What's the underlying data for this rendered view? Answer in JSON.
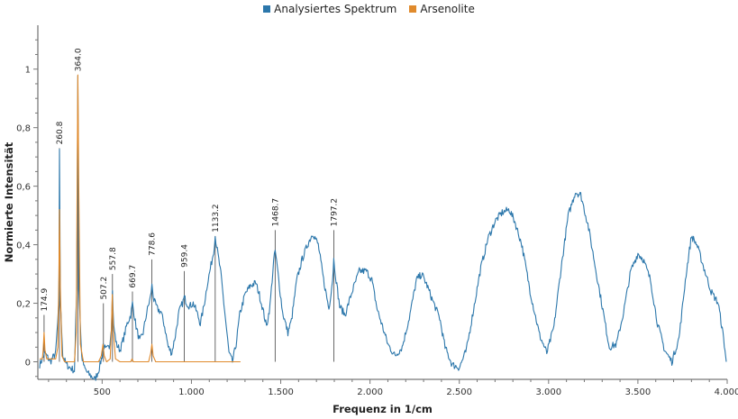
{
  "chart_data": {
    "type": "line",
    "title": "",
    "xlabel": "Frequenz in 1/cm",
    "ylabel": "Normierte Intensität",
    "xlim": [
      140,
      4000
    ],
    "ylim": [
      -0.06,
      1.15
    ],
    "x_ticks": [
      500,
      1000,
      1500,
      2000,
      2500,
      3000,
      3500,
      4000
    ],
    "x_tick_labels": [
      "500",
      "1.000",
      "1.500",
      "2.000",
      "2.500",
      "3.000",
      "3.500",
      "4.000"
    ],
    "y_ticks": [
      0,
      0.2,
      0.4,
      0.6,
      0.8,
      1
    ],
    "y_tick_labels": [
      "0",
      "0,2",
      "0,4",
      "0,6",
      "0,8",
      "1"
    ],
    "grid": false,
    "legend_position": "top-center",
    "series": [
      {
        "name": "Analysiertes Spektrum",
        "color": "#2c77ab",
        "points": [
          [
            150,
            -0.01
          ],
          [
            180,
            0.03
          ],
          [
            210,
            0.0
          ],
          [
            240,
            0.03
          ],
          [
            258,
            0.2
          ],
          [
            261,
            0.73
          ],
          [
            266,
            0.2
          ],
          [
            280,
            0.02
          ],
          [
            300,
            -0.01
          ],
          [
            320,
            -0.02
          ],
          [
            345,
            -0.03
          ],
          [
            358,
            0.25
          ],
          [
            364,
            0.98
          ],
          [
            370,
            0.25
          ],
          [
            385,
            0.02
          ],
          [
            400,
            -0.02
          ],
          [
            420,
            -0.04
          ],
          [
            440,
            -0.05
          ],
          [
            460,
            -0.06
          ],
          [
            480,
            -0.03
          ],
          [
            500,
            0.02
          ],
          [
            507,
            0.06
          ],
          [
            520,
            0.04
          ],
          [
            540,
            0.05
          ],
          [
            552,
            0.12
          ],
          [
            558,
            0.24
          ],
          [
            565,
            0.12
          ],
          [
            580,
            0.06
          ],
          [
            600,
            0.04
          ],
          [
            620,
            0.08
          ],
          [
            640,
            0.13
          ],
          [
            660,
            0.16
          ],
          [
            670,
            0.2
          ],
          [
            690,
            0.12
          ],
          [
            710,
            0.07
          ],
          [
            730,
            0.1
          ],
          [
            750,
            0.17
          ],
          [
            770,
            0.22
          ],
          [
            779,
            0.26
          ],
          [
            790,
            0.21
          ],
          [
            810,
            0.18
          ],
          [
            830,
            0.17
          ],
          [
            850,
            0.12
          ],
          [
            870,
            0.05
          ],
          [
            890,
            0.03
          ],
          [
            910,
            0.09
          ],
          [
            930,
            0.17
          ],
          [
            950,
            0.2
          ],
          [
            960,
            0.22
          ],
          [
            975,
            0.2
          ],
          [
            990,
            0.19
          ],
          [
            1010,
            0.2
          ],
          [
            1030,
            0.17
          ],
          [
            1050,
            0.13
          ],
          [
            1070,
            0.19
          ],
          [
            1090,
            0.27
          ],
          [
            1110,
            0.33
          ],
          [
            1125,
            0.38
          ],
          [
            1133,
            0.43
          ],
          [
            1145,
            0.38
          ],
          [
            1165,
            0.3
          ],
          [
            1190,
            0.15
          ],
          [
            1210,
            0.03
          ],
          [
            1230,
            0.0
          ],
          [
            1250,
            0.06
          ],
          [
            1270,
            0.16
          ],
          [
            1300,
            0.23
          ],
          [
            1330,
            0.26
          ],
          [
            1360,
            0.27
          ],
          [
            1380,
            0.23
          ],
          [
            1400,
            0.18
          ],
          [
            1420,
            0.12
          ],
          [
            1440,
            0.19
          ],
          [
            1460,
            0.34
          ],
          [
            1469,
            0.38
          ],
          [
            1485,
            0.3
          ],
          [
            1510,
            0.17
          ],
          [
            1540,
            0.1
          ],
          [
            1560,
            0.14
          ],
          [
            1590,
            0.28
          ],
          [
            1620,
            0.35
          ],
          [
            1650,
            0.4
          ],
          [
            1680,
            0.44
          ],
          [
            1710,
            0.4
          ],
          [
            1740,
            0.28
          ],
          [
            1770,
            0.18
          ],
          [
            1790,
            0.28
          ],
          [
            1797,
            0.35
          ],
          [
            1810,
            0.28
          ],
          [
            1830,
            0.19
          ],
          [
            1860,
            0.16
          ],
          [
            1900,
            0.24
          ],
          [
            1940,
            0.31
          ],
          [
            1980,
            0.31
          ],
          [
            2010,
            0.28
          ],
          [
            2040,
            0.18
          ],
          [
            2070,
            0.12
          ],
          [
            2100,
            0.06
          ],
          [
            2140,
            0.02
          ],
          [
            2180,
            0.05
          ],
          [
            2220,
            0.15
          ],
          [
            2260,
            0.28
          ],
          [
            2290,
            0.3
          ],
          [
            2320,
            0.26
          ],
          [
            2350,
            0.21
          ],
          [
            2390,
            0.15
          ],
          [
            2420,
            0.05
          ],
          [
            2460,
            -0.01
          ],
          [
            2500,
            -0.02
          ],
          [
            2540,
            0.04
          ],
          [
            2580,
            0.18
          ],
          [
            2620,
            0.32
          ],
          [
            2660,
            0.42
          ],
          [
            2700,
            0.48
          ],
          [
            2740,
            0.51
          ],
          [
            2780,
            0.52
          ],
          [
            2810,
            0.48
          ],
          [
            2850,
            0.4
          ],
          [
            2900,
            0.23
          ],
          [
            2950,
            0.09
          ],
          [
            2990,
            0.03
          ],
          [
            3030,
            0.12
          ],
          [
            3070,
            0.32
          ],
          [
            3110,
            0.5
          ],
          [
            3150,
            0.58
          ],
          [
            3180,
            0.57
          ],
          [
            3220,
            0.47
          ],
          [
            3260,
            0.33
          ],
          [
            3300,
            0.19
          ],
          [
            3340,
            0.05
          ],
          [
            3380,
            0.06
          ],
          [
            3420,
            0.17
          ],
          [
            3460,
            0.31
          ],
          [
            3500,
            0.37
          ],
          [
            3530,
            0.35
          ],
          [
            3570,
            0.28
          ],
          [
            3610,
            0.13
          ],
          [
            3650,
            0.04
          ],
          [
            3690,
            0.0
          ],
          [
            3730,
            0.08
          ],
          [
            3770,
            0.3
          ],
          [
            3800,
            0.43
          ],
          [
            3830,
            0.4
          ],
          [
            3870,
            0.32
          ],
          [
            3910,
            0.24
          ],
          [
            3950,
            0.2
          ],
          [
            3980,
            0.08
          ],
          [
            3995,
            0.0
          ]
        ]
      },
      {
        "name": "Arsenolite",
        "color": "#e08a2c",
        "points": [
          [
            150,
            0.01
          ],
          [
            165,
            0.01
          ],
          [
            170,
            0.04
          ],
          [
            175,
            0.1
          ],
          [
            180,
            0.04
          ],
          [
            190,
            0.01
          ],
          [
            240,
            0.01
          ],
          [
            252,
            0.05
          ],
          [
            258,
            0.3
          ],
          [
            261,
            0.52
          ],
          [
            266,
            0.25
          ],
          [
            275,
            0.02
          ],
          [
            290,
            0.0
          ],
          [
            345,
            0.0
          ],
          [
            355,
            0.1
          ],
          [
            361,
            0.7
          ],
          [
            364,
            0.98
          ],
          [
            369,
            0.6
          ],
          [
            378,
            0.06
          ],
          [
            395,
            0.0
          ],
          [
            480,
            0.0
          ],
          [
            495,
            0.02
          ],
          [
            505,
            0.06
          ],
          [
            512,
            0.02
          ],
          [
            525,
            0.0
          ],
          [
            545,
            0.01
          ],
          [
            552,
            0.12
          ],
          [
            557,
            0.23
          ],
          [
            563,
            0.1
          ],
          [
            575,
            0.01
          ],
          [
            600,
            0.0
          ],
          [
            660,
            0.0
          ],
          [
            668,
            0.01
          ],
          [
            675,
            0.0
          ],
          [
            760,
            0.0
          ],
          [
            772,
            0.03
          ],
          [
            779,
            0.06
          ],
          [
            786,
            0.02
          ],
          [
            800,
            0.0
          ],
          [
            1000,
            0.0
          ],
          [
            1275,
            0.0
          ]
        ]
      }
    ],
    "peak_labels": [
      {
        "x": 174.9,
        "y": 0.16,
        "label": "174.9"
      },
      {
        "x": 260.8,
        "y": 0.73,
        "label": "260.8"
      },
      {
        "x": 364.0,
        "y": 0.98,
        "label": "364.0"
      },
      {
        "x": 507.2,
        "y": 0.2,
        "label": "507.2"
      },
      {
        "x": 557.8,
        "y": 0.3,
        "label": "557.8"
      },
      {
        "x": 669.7,
        "y": 0.24,
        "label": "669.7"
      },
      {
        "x": 778.6,
        "y": 0.35,
        "label": "778.6"
      },
      {
        "x": 959.4,
        "y": 0.31,
        "label": "959.4"
      },
      {
        "x": 1133.2,
        "y": 0.43,
        "label": "1133.2"
      },
      {
        "x": 1468.7,
        "y": 0.45,
        "label": "1468.7"
      },
      {
        "x": 1797.2,
        "y": 0.45,
        "label": "1797.2"
      }
    ]
  }
}
